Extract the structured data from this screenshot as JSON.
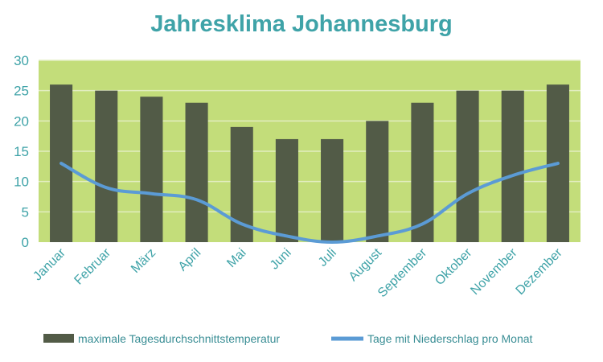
{
  "chart_data": {
    "type": "bar",
    "title": "Jahresklima Johannesburg",
    "categories": [
      "Januar",
      "Februar",
      "März",
      "April",
      "Mai",
      "Juni",
      "Juli",
      "August",
      "September",
      "Oktober",
      "November",
      "Dezember"
    ],
    "series": [
      {
        "name": "maximale Tagesdurchschnittstemperatur",
        "type": "bar",
        "values": [
          26,
          25,
          24,
          23,
          19,
          17,
          17,
          20,
          23,
          25,
          25,
          26
        ],
        "color": "#525b47"
      },
      {
        "name": "Tage mit Niederschlag pro Monat",
        "type": "line",
        "values": [
          13,
          9,
          8,
          7,
          3,
          1,
          0,
          1,
          3,
          8,
          11,
          13
        ],
        "color": "#5b9bd5"
      }
    ],
    "ylim": [
      0,
      30
    ],
    "yticks": [
      0,
      5,
      10,
      15,
      20,
      25,
      30
    ],
    "grid": true,
    "legend": "bottom",
    "colors": {
      "plot_background": "#c3dd7a",
      "gridline": "#e2edc0",
      "text": "#3fa3a8"
    }
  }
}
